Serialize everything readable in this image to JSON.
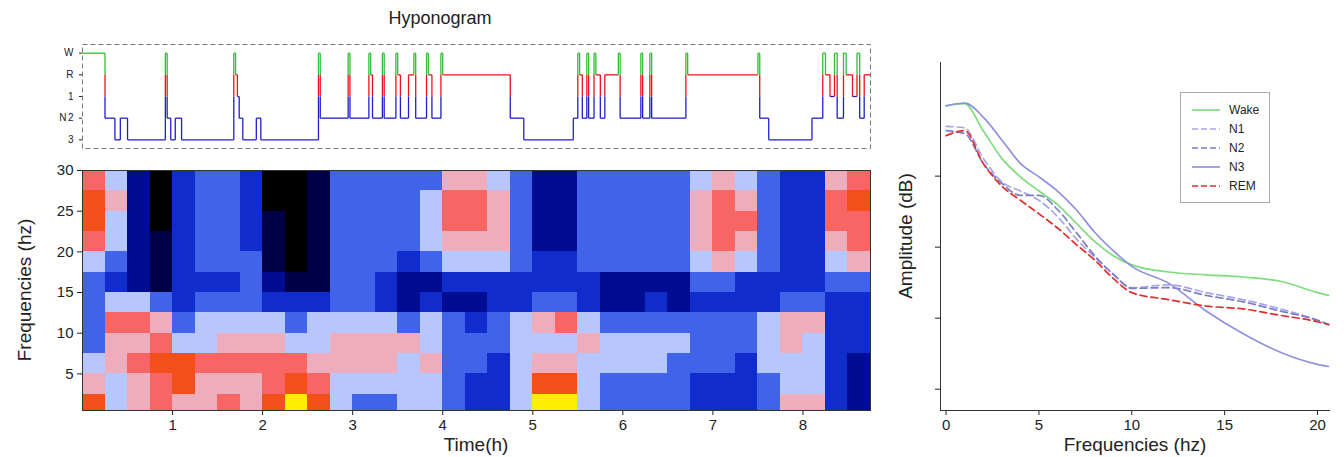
{
  "chart_data": [
    {
      "type": "step",
      "title": "Hyponogram",
      "ylabel": "N",
      "y_categories": [
        "W",
        "R",
        "1",
        "2",
        "3"
      ],
      "colors": [
        "#2fbf2f",
        "#e8141c",
        "#1f1fc8",
        "#1f1fc8",
        "#1f1fc8"
      ],
      "x": [
        0,
        0.25,
        0.36,
        0.42,
        0.5,
        0.92,
        0.94,
        0.98,
        1.03,
        1.1,
        1.68,
        1.7,
        1.72,
        1.74,
        1.78,
        1.93,
        1.98,
        2.62,
        2.64,
        2.95,
        2.97,
        3.18,
        3.2,
        3.22,
        3.33,
        3.35,
        3.48,
        3.5,
        3.53,
        3.62,
        3.68,
        3.7,
        3.82,
        3.84,
        3.88,
        3.98,
        4.0,
        4.75,
        4.9,
        5.45,
        5.5,
        5.52,
        5.55,
        5.6,
        5.62,
        5.68,
        5.7,
        5.75,
        5.8,
        5.95,
        5.97,
        6.2,
        6.22,
        6.3,
        6.32,
        6.7,
        6.72,
        7.5,
        7.52,
        7.62,
        8.1,
        8.22,
        8.25,
        8.3,
        8.35,
        8.38,
        8.45,
        8.48,
        8.55,
        8.6,
        8.63,
        8.68
      ],
      "values": [
        "W",
        "2",
        "3",
        "2",
        "3",
        "W",
        "2",
        "3",
        "2",
        "3",
        "W",
        "R",
        "1",
        "2",
        "3",
        "2",
        "3",
        "W",
        "2",
        "W",
        "2",
        "W",
        "R",
        "2",
        "W",
        "2",
        "W",
        "R",
        "2",
        "R",
        "W",
        "2",
        "W",
        "R",
        "2",
        "W",
        "R",
        "2",
        "3",
        "2",
        "W",
        "R",
        "2",
        "W",
        "2",
        "W",
        "R",
        "2",
        "R",
        "W",
        "2",
        "W",
        "2",
        "W",
        "2",
        "W",
        "R",
        "W",
        "2",
        "3",
        "2",
        "W",
        "R",
        "1",
        "W",
        "2",
        "W",
        "R",
        "1",
        "W",
        "2",
        "R"
      ],
      "xlim": [
        0,
        8.75
      ],
      "tick_labels": "y"
    },
    {
      "type": "heatmap",
      "xlabel": "Time(h)",
      "ylabel": "Frequencies (hz)",
      "xlim": [
        0,
        8.75
      ],
      "xticks": [
        1,
        2,
        3,
        4,
        5,
        6,
        7,
        8
      ],
      "ylim": [
        0.5,
        30
      ],
      "yticks": [
        5,
        10,
        15,
        20,
        25,
        30
      ],
      "x_edges": [
        0,
        0.25,
        0.5,
        0.75,
        1,
        1.25,
        1.5,
        1.75,
        2,
        2.25,
        2.5,
        2.75,
        3,
        3.25,
        3.5,
        3.75,
        4,
        4.25,
        4.5,
        4.75,
        5,
        5.25,
        5.5,
        5.75,
        6,
        6.25,
        6.5,
        6.75,
        7,
        7.25,
        7.5,
        7.75,
        8,
        8.25,
        8.5,
        8.75
      ],
      "y_edges": [
        0.5,
        2.5,
        5,
        7.5,
        10,
        12.5,
        15,
        17.5,
        20,
        22.5,
        25,
        27.5,
        30
      ],
      "values": [
        [
          8,
          5,
          6,
          7,
          6,
          6,
          7,
          6,
          8,
          9,
          8,
          5,
          4,
          4,
          5,
          5,
          4,
          3,
          3,
          5,
          9,
          9,
          5,
          4,
          4,
          4,
          4,
          3,
          3,
          3,
          4,
          6,
          6,
          3,
          2
        ],
        [
          6,
          5,
          6,
          7,
          8,
          6,
          6,
          6,
          7,
          8,
          7,
          5,
          5,
          5,
          5,
          5,
          4,
          3,
          3,
          5,
          8,
          8,
          5,
          4,
          4,
          4,
          4,
          3,
          3,
          3,
          4,
          5,
          5,
          3,
          2
        ],
        [
          5,
          6,
          7,
          8,
          8,
          7,
          7,
          7,
          7,
          7,
          6,
          6,
          6,
          6,
          5,
          6,
          4,
          4,
          3,
          5,
          6,
          6,
          5,
          5,
          5,
          5,
          4,
          4,
          4,
          3,
          5,
          5,
          5,
          3,
          2
        ],
        [
          4,
          6,
          6,
          7,
          5,
          5,
          6,
          6,
          6,
          5,
          5,
          6,
          6,
          6,
          6,
          5,
          4,
          4,
          4,
          5,
          5,
          5,
          6,
          5,
          5,
          5,
          5,
          4,
          4,
          4,
          5,
          6,
          5,
          3,
          3
        ],
        [
          4,
          7,
          7,
          6,
          4,
          5,
          5,
          5,
          5,
          4,
          5,
          5,
          5,
          5,
          4,
          5,
          4,
          3,
          4,
          5,
          6,
          7,
          5,
          4,
          4,
          4,
          4,
          4,
          4,
          4,
          5,
          6,
          6,
          3,
          3
        ],
        [
          4,
          5,
          5,
          4,
          3,
          4,
          4,
          4,
          3,
          3,
          3,
          4,
          4,
          3,
          2,
          3,
          2,
          2,
          3,
          3,
          4,
          4,
          3,
          2,
          2,
          3,
          2,
          3,
          3,
          3,
          3,
          4,
          4,
          3,
          3
        ],
        [
          4,
          3,
          2,
          1,
          3,
          3,
          3,
          4,
          2,
          1,
          1,
          4,
          4,
          3,
          2,
          2,
          3,
          3,
          3,
          3,
          3,
          3,
          3,
          2,
          2,
          2,
          2,
          4,
          4,
          3,
          3,
          3,
          3,
          4,
          4
        ],
        [
          5,
          4,
          2,
          1,
          3,
          4,
          4,
          4,
          1,
          0,
          1,
          4,
          4,
          4,
          3,
          4,
          5,
          5,
          5,
          4,
          3,
          3,
          4,
          4,
          4,
          4,
          4,
          5,
          6,
          5,
          4,
          3,
          3,
          5,
          6
        ],
        [
          7,
          5,
          2,
          1,
          3,
          4,
          4,
          3,
          1,
          0,
          1,
          4,
          4,
          4,
          4,
          5,
          6,
          6,
          6,
          4,
          2,
          2,
          4,
          4,
          4,
          4,
          4,
          6,
          7,
          6,
          4,
          3,
          3,
          6,
          7
        ],
        [
          8,
          5,
          2,
          0,
          3,
          4,
          4,
          3,
          1,
          0,
          1,
          4,
          4,
          4,
          4,
          5,
          7,
          7,
          6,
          4,
          2,
          2,
          4,
          4,
          4,
          4,
          4,
          6,
          7,
          7,
          4,
          3,
          3,
          7,
          7
        ],
        [
          8,
          6,
          2,
          0,
          3,
          4,
          4,
          3,
          0,
          0,
          1,
          4,
          4,
          4,
          4,
          5,
          7,
          7,
          6,
          4,
          2,
          2,
          4,
          4,
          4,
          4,
          4,
          6,
          7,
          6,
          4,
          3,
          3,
          7,
          8
        ],
        [
          7,
          5,
          2,
          0,
          3,
          4,
          4,
          3,
          0,
          0,
          1,
          4,
          4,
          4,
          4,
          4,
          6,
          6,
          5,
          4,
          2,
          2,
          4,
          4,
          4,
          4,
          4,
          5,
          6,
          5,
          4,
          3,
          3,
          6,
          7
        ]
      ],
      "color_range": [
        0,
        9
      ],
      "colors": [
        "#000000",
        "#00005a",
        "#0018c0",
        "#2f55e6",
        "#c8d4ff",
        "#ff9a9a",
        "#ee2222",
        "#ffee00"
      ]
    },
    {
      "type": "line",
      "xlabel": "Frequencies (hz)",
      "ylabel": "Amplitude  (dB)",
      "x": [
        0,
        1,
        2,
        3,
        4,
        5,
        6,
        7,
        8,
        9,
        10,
        12,
        14,
        16,
        18,
        20,
        20.6
      ],
      "series": [
        {
          "name": "Wake",
          "color": "#7fdc7f",
          "line_style": "solid",
          "values": [
            39.9,
            40.2,
            36.4,
            32.5,
            29.9,
            27.9,
            26.0,
            23.4,
            20.8,
            18.8,
            17.5,
            16.5,
            16.1,
            15.8,
            15.2,
            13.6,
            13.2
          ]
        },
        {
          "name": "N1",
          "color": "#a6a6e6",
          "line_style": "dashed",
          "values": [
            37.0,
            36.8,
            32.5,
            29.2,
            27.9,
            26.6,
            24.3,
            21.2,
            18.6,
            16.2,
            14.3,
            14.7,
            13.6,
            12.6,
            11.3,
            9.7,
            9.1
          ]
        },
        {
          "name": "N2",
          "color": "#7d7dc8",
          "line_style": "dashed",
          "values": [
            36.4,
            36.0,
            31.8,
            29.0,
            27.3,
            27.3,
            25.3,
            22.1,
            18.8,
            16.2,
            14.2,
            14.3,
            13.2,
            12.3,
            11.0,
            9.7,
            9.1
          ]
        },
        {
          "name": "N3",
          "color": "#9090e0",
          "line_style": "solid",
          "values": [
            39.9,
            40.3,
            38.3,
            35.1,
            31.8,
            29.9,
            27.9,
            25.3,
            22.1,
            19.5,
            17.3,
            14.9,
            11.0,
            7.8,
            5.2,
            3.5,
            3.2
          ]
        },
        {
          "name": "REM",
          "color": "#e03030",
          "line_style": "dashed",
          "values": [
            35.7,
            36.4,
            31.8,
            28.6,
            26.6,
            24.7,
            22.7,
            20.4,
            18.2,
            15.6,
            13.6,
            12.6,
            11.7,
            11.3,
            10.4,
            9.5,
            9.1
          ]
        }
      ],
      "xlim": [
        -0.3,
        20.7
      ],
      "xticks": [
        0,
        5,
        10,
        15,
        20
      ],
      "ylim": [
        -3,
        46
      ],
      "yticks": [
        0,
        10,
        20,
        30
      ],
      "tick_labels": "x",
      "legend": "top-right"
    }
  ]
}
